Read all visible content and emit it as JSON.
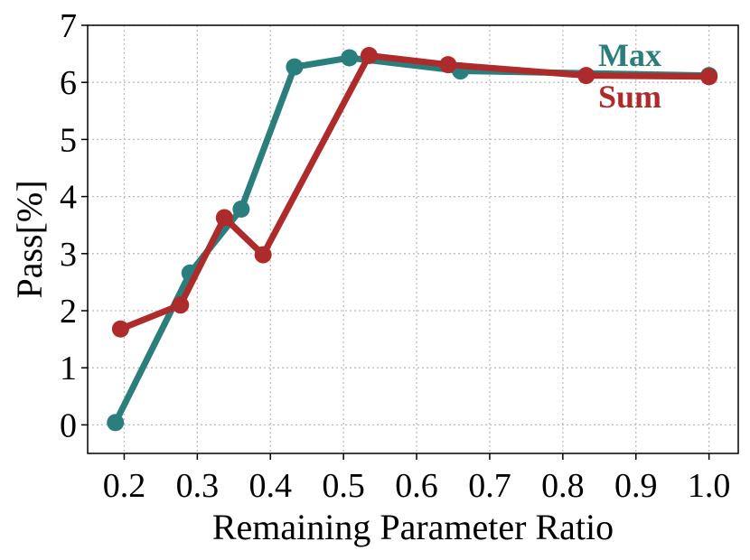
{
  "chart_data": {
    "type": "line",
    "xlabel": "Remaining Parameter Ratio",
    "ylabel": "Pass[%]",
    "xlim": [
      0.15,
      1.04
    ],
    "ylim": [
      -0.5,
      7
    ],
    "xticks": [
      0.2,
      0.3,
      0.4,
      0.5,
      0.6,
      0.7,
      0.8,
      0.9,
      1.0
    ],
    "xtick_labels": [
      "0.2",
      "0.3",
      "0.4",
      "0.5",
      "0.6",
      "0.7",
      "0.8",
      "0.9",
      "1.0"
    ],
    "yticks": [
      0,
      1,
      2,
      3,
      4,
      5,
      6,
      7
    ],
    "ytick_labels": [
      "0",
      "1",
      "2",
      "3",
      "4",
      "5",
      "6",
      "7"
    ],
    "grid": true,
    "legend_placement": "top-right",
    "series": [
      {
        "name": "Max",
        "color": "#2a7f7d",
        "x": [
          0.188,
          0.29,
          0.36,
          0.433,
          0.508,
          0.66,
          1.0
        ],
        "y": [
          0.04,
          2.66,
          3.78,
          6.27,
          6.43,
          6.2,
          6.12
        ]
      },
      {
        "name": "Sum",
        "color": "#ae2b2b",
        "x": [
          0.195,
          0.277,
          0.337,
          0.39,
          0.535,
          0.643,
          0.832,
          1.0
        ],
        "y": [
          1.68,
          2.1,
          3.63,
          2.98,
          6.47,
          6.31,
          6.12,
          6.1
        ]
      }
    ]
  }
}
